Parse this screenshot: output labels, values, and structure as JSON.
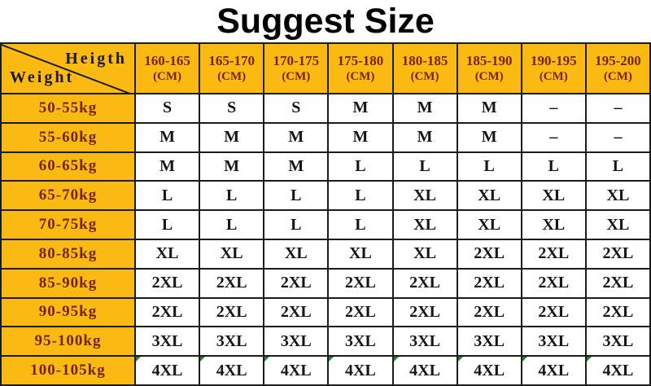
{
  "title": "Suggest Size",
  "corner": {
    "top_label": "Heigth",
    "bottom_label": "Weight"
  },
  "columns": [
    {
      "range": "160-165",
      "unit": "(CM)"
    },
    {
      "range": "165-170",
      "unit": "(CM)"
    },
    {
      "range": "170-175",
      "unit": "(CM)"
    },
    {
      "range": "175-180",
      "unit": "(CM)"
    },
    {
      "range": "180-185",
      "unit": "(CM)"
    },
    {
      "range": "185-190",
      "unit": "(CM)"
    },
    {
      "range": "190-195",
      "unit": "(CM)"
    },
    {
      "range": "195-200",
      "unit": "(CM)"
    }
  ],
  "rows": [
    {
      "weight": "50-55kg",
      "sizes": [
        "S",
        "S",
        "S",
        "M",
        "M",
        "M",
        "–",
        "–"
      ],
      "corner_mark": false
    },
    {
      "weight": "55-60kg",
      "sizes": [
        "M",
        "M",
        "M",
        "M",
        "M",
        "M",
        "–",
        "–"
      ],
      "corner_mark": false
    },
    {
      "weight": "60-65kg",
      "sizes": [
        "M",
        "M",
        "M",
        "L",
        "L",
        "L",
        "L",
        "L"
      ],
      "corner_mark": false
    },
    {
      "weight": "65-70kg",
      "sizes": [
        "L",
        "L",
        "L",
        "L",
        "XL",
        "XL",
        "XL",
        "XL"
      ],
      "corner_mark": false
    },
    {
      "weight": "70-75kg",
      "sizes": [
        "L",
        "L",
        "L",
        "L",
        "XL",
        "XL",
        "XL",
        "XL"
      ],
      "corner_mark": false
    },
    {
      "weight": "80-85kg",
      "sizes": [
        "XL",
        "XL",
        "XL",
        "XL",
        "XL",
        "2XL",
        "2XL",
        "2XL"
      ],
      "corner_mark": false
    },
    {
      "weight": "85-90kg",
      "sizes": [
        "2XL",
        "2XL",
        "2XL",
        "2XL",
        "2XL",
        "2XL",
        "2XL",
        "2XL"
      ],
      "corner_mark": false
    },
    {
      "weight": "90-95kg",
      "sizes": [
        "2XL",
        "2XL",
        "2XL",
        "2XL",
        "2XL",
        "2XL",
        "2XL",
        "2XL"
      ],
      "corner_mark": false
    },
    {
      "weight": "95-100kg",
      "sizes": [
        "3XL",
        "3XL",
        "3XL",
        "3XL",
        "3XL",
        "3XL",
        "3XL",
        "3XL"
      ],
      "corner_mark": false
    },
    {
      "weight": "100-105kg",
      "sizes": [
        "4XL",
        "4XL",
        "4XL",
        "4XL",
        "4XL",
        "4XL",
        "4XL",
        "4XL"
      ],
      "corner_mark": true
    }
  ],
  "colors": {
    "page_bg": "#FFFFFF",
    "title_text": "#000000",
    "header_bg": "#FBBA12",
    "header_text": "#742500",
    "corner_text": "#1A1A1A",
    "cell_text": "#151515",
    "border": "#1C1C1C",
    "corner_mark": "#2E7D32"
  }
}
